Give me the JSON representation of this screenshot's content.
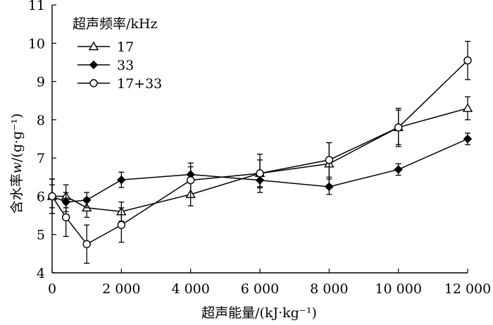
{
  "chart_data": {
    "type": "line",
    "title": "",
    "xlabel": "超声能量/(kJ·kg⁻¹)",
    "ylabel_main": "含水率",
    "ylabel_var": "w",
    "ylabel_unit": "/(g·g⁻¹)",
    "xlim": [
      0,
      12000
    ],
    "ylim": [
      4,
      11
    ],
    "x_ticks": [
      0,
      2000,
      4000,
      6000,
      8000,
      10000,
      12000
    ],
    "x_tick_labels": [
      "0",
      "2 000",
      "4 000",
      "6 000",
      "8 000",
      "10 000",
      "12 000"
    ],
    "y_ticks": [
      4,
      5,
      6,
      7,
      8,
      9,
      10,
      11
    ],
    "y_tick_labels": [
      "4",
      "5",
      "6",
      "7",
      "8",
      "9",
      "10",
      "11"
    ],
    "legend_title": "超声频率/kHz",
    "legend_position": "top-left",
    "grid": false,
    "series": [
      {
        "name": "17",
        "marker": "open-triangle",
        "x": [
          0,
          400,
          1000,
          2000,
          4000,
          6000,
          8000,
          10000,
          12000
        ],
        "y": [
          6.0,
          6.0,
          5.7,
          5.6,
          6.05,
          6.6,
          6.85,
          7.8,
          8.3
        ],
        "err": [
          0.45,
          0.3,
          0.25,
          0.25,
          0.3,
          0.35,
          0.55,
          0.5,
          0.3
        ]
      },
      {
        "name": "33",
        "marker": "filled-diamond",
        "x": [
          0,
          400,
          1000,
          2000,
          4000,
          6000,
          8000,
          10000,
          12000
        ],
        "y": [
          6.0,
          5.85,
          5.9,
          6.43,
          6.57,
          6.42,
          6.25,
          6.7,
          7.5
        ],
        "err": [
          0.3,
          0.25,
          0.2,
          0.2,
          0.2,
          0.2,
          0.2,
          0.15,
          0.15
        ]
      },
      {
        "name": "17+33",
        "marker": "open-circle",
        "x": [
          0,
          400,
          1000,
          2000,
          4000,
          6000,
          8000,
          10000,
          12000
        ],
        "y": [
          6.0,
          5.45,
          4.75,
          5.25,
          6.42,
          6.6,
          6.95,
          7.8,
          9.55
        ],
        "err": [
          0.45,
          0.5,
          0.5,
          0.45,
          0.45,
          0.5,
          0.45,
          0.45,
          0.5
        ]
      }
    ]
  }
}
